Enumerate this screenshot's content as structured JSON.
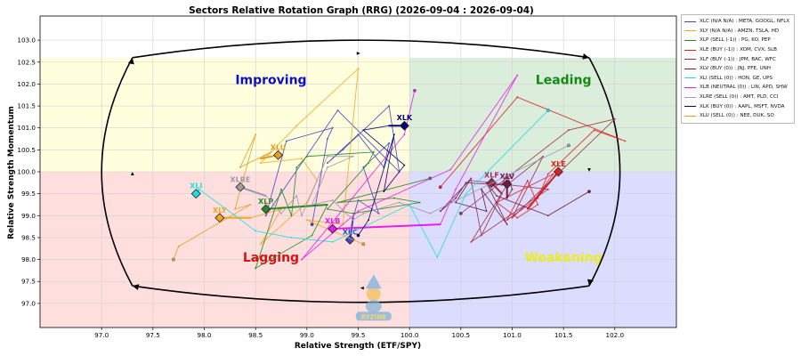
{
  "chart_data": {
    "type": "scatter",
    "title": "Sectors Relative Rotation Graph (RRG) (2026-09-04 : 2026-09-04)",
    "xlabel": "Relative Strength (ETF/SPY)",
    "ylabel": "Relative Strength Momentum",
    "xlim": [
      96.4,
      102.6
    ],
    "ylim": [
      96.45,
      103.55
    ],
    "xticks": [
      97.0,
      97.5,
      98.0,
      98.5,
      99.0,
      99.5,
      100.0,
      100.5,
      101.0,
      101.5,
      102.0
    ],
    "yticks": [
      97.0,
      97.5,
      98.0,
      98.5,
      99.0,
      99.5,
      100.0,
      100.5,
      101.0,
      101.5,
      102.0,
      102.5,
      103.0
    ],
    "grid": true,
    "legend_position": "right",
    "quadrants": [
      {
        "name": "Improving",
        "color": "#0d0dcc",
        "x": 98.65,
        "y": 102.1,
        "bg": "#ffffdd"
      },
      {
        "name": "Leading",
        "color": "#128a12",
        "x": 101.5,
        "y": 102.1,
        "bg": "#dbeedb"
      },
      {
        "name": "Lagging",
        "color": "#dd1111",
        "x": 98.65,
        "y": 98.05,
        "bg": "#ffdede"
      },
      {
        "name": "Weakening",
        "color": "#eded1b",
        "x": 101.5,
        "y": 98.05,
        "bg": "#dcdcff"
      }
    ],
    "watermark": "RYZINE",
    "series": [
      {
        "name": "XLC",
        "legend": "XLC (N/A N/A) : META, GOOGL, NFLX",
        "color": "#4444cc",
        "points": [
          [
            99.05,
            98.8
          ],
          [
            99.2,
            100.75
          ],
          [
            99.25,
            101.0
          ],
          [
            98.8,
            100.7
          ],
          [
            98.6,
            99.0
          ],
          [
            99.3,
            101.4
          ],
          [
            99.9,
            100.0
          ],
          [
            99.8,
            101.5
          ],
          [
            99.35,
            100.5
          ],
          [
            99.2,
            100.2
          ],
          [
            99.5,
            100.85
          ],
          [
            99.75,
            100.1
          ],
          [
            99.8,
            100.65
          ],
          [
            99.55,
            100.1
          ],
          [
            99.7,
            99.05
          ],
          [
            99.5,
            99.35
          ],
          [
            99.45,
            98.95
          ],
          [
            99.42,
            98.45
          ]
        ]
      },
      {
        "name": "XLY",
        "legend": "XLY (N/A N/A) : AMZN, TSLA, HD",
        "color": "#f5a623",
        "points": [
          [
            99.55,
            98.35
          ],
          [
            99.0,
            98.9
          ],
          [
            99.35,
            98.8
          ],
          [
            99.5,
            102.35
          ],
          [
            98.9,
            101.05
          ],
          [
            98.55,
            100.2
          ],
          [
            98.95,
            100.3
          ],
          [
            99.1,
            99.8
          ],
          [
            99.0,
            99.3
          ],
          [
            98.55,
            98.35
          ],
          [
            98.75,
            99.15
          ],
          [
            98.45,
            98.95
          ],
          [
            98.15,
            98.95
          ]
        ]
      },
      {
        "name": "XLP",
        "legend": "XLP (SELL (-1)) : PG, KO, PEP",
        "color": "#228b22",
        "points": [
          [
            100.2,
            99.85
          ],
          [
            99.3,
            99.3
          ],
          [
            99.85,
            99.4
          ],
          [
            100.1,
            99.3
          ],
          [
            99.45,
            99.05
          ],
          [
            99.2,
            99.15
          ],
          [
            99.6,
            100.2
          ],
          [
            99.65,
            100.45
          ],
          [
            99.0,
            100.35
          ],
          [
            98.9,
            100.1
          ],
          [
            98.85,
            99.0
          ],
          [
            98.75,
            99.6
          ],
          [
            98.5,
            97.8
          ],
          [
            99.05,
            98.55
          ],
          [
            99.2,
            99.25
          ],
          [
            98.6,
            99.15
          ]
        ]
      },
      {
        "name": "XLE",
        "legend": "XLE (BUY (-1)) : XOM, CVX, SLB",
        "color": "#e02020",
        "points": [
          [
            100.3,
            99.65
          ],
          [
            101.05,
            101.7
          ],
          [
            102.1,
            100.7
          ],
          [
            101.8,
            100.95
          ],
          [
            101.35,
            99.95
          ],
          [
            101.25,
            99.4
          ],
          [
            100.95,
            98.9
          ],
          [
            101.15,
            99.8
          ],
          [
            101.25,
            99.25
          ],
          [
            101.05,
            98.95
          ],
          [
            100.85,
            99.3
          ],
          [
            101.4,
            99.95
          ],
          [
            101.15,
            99.15
          ],
          [
            101.45,
            100.0
          ]
        ]
      },
      {
        "name": "XLF",
        "legend": "XLF (BUY (-1)) : JPM, BAC, WFC",
        "color": "#a0304a",
        "points": [
          [
            100.5,
            99.05
          ],
          [
            101.55,
            100.95
          ],
          [
            102.0,
            101.2
          ],
          [
            101.0,
            98.95
          ],
          [
            101.3,
            100.35
          ],
          [
            100.95,
            99.7
          ],
          [
            100.6,
            98.4
          ],
          [
            101.35,
            99.6
          ],
          [
            100.6,
            99.8
          ],
          [
            100.7,
            98.55
          ],
          [
            100.9,
            99.5
          ],
          [
            100.8,
            99.75
          ]
        ]
      },
      {
        "name": "XLV",
        "legend": "XLV (BUY (0)) : JNJ, PFE, UNH",
        "color": "#701a40",
        "points": [
          [
            101.75,
            99.55
          ],
          [
            101.35,
            99.0
          ],
          [
            100.85,
            99.45
          ],
          [
            100.75,
            99.75
          ],
          [
            100.95,
            98.8
          ],
          [
            100.7,
            99.6
          ],
          [
            100.75,
            99.1
          ],
          [
            100.45,
            99.3
          ],
          [
            100.6,
            99.85
          ],
          [
            100.3,
            99.1
          ],
          [
            100.45,
            99.4
          ],
          [
            100.55,
            99.75
          ],
          [
            100.9,
            99.7
          ],
          [
            100.95,
            99.95
          ],
          [
            101.0,
            99.6
          ],
          [
            100.95,
            99.4
          ],
          [
            100.95,
            99.72
          ]
        ]
      },
      {
        "name": "XLI",
        "legend": "XLI (SELL (0)) : HON, GE, UPS",
        "color": "#17e1e1",
        "points": [
          [
            101.35,
            101.4
          ],
          [
            100.55,
            99.5
          ],
          [
            100.27,
            98.05
          ],
          [
            100.0,
            99.25
          ],
          [
            99.25,
            98.4
          ],
          [
            98.85,
            98.5
          ],
          [
            98.5,
            98.65
          ],
          [
            98.3,
            99.0
          ],
          [
            97.95,
            99.6
          ],
          [
            97.92,
            99.5
          ]
        ]
      },
      {
        "name": "XLB",
        "legend": "XLB (NEUTRAL (0)) : LIN, APD, SHW",
        "color": "#e81ee8",
        "points": [
          [
            100.05,
            101.85
          ],
          [
            99.95,
            100.85
          ],
          [
            98.95,
            98.0
          ],
          [
            99.5,
            99.1
          ],
          [
            100.4,
            100.05
          ],
          [
            101.05,
            102.2
          ],
          [
            100.45,
            99.6
          ],
          [
            100.3,
            98.8
          ],
          [
            99.25,
            98.7
          ]
        ]
      },
      {
        "name": "XLRE",
        "legend": "XLRE (SELL (0)) : AMT, PLD, CCI",
        "color": "#9a9ab0",
        "points": [
          [
            101.55,
            100.6
          ],
          [
            100.2,
            99.05
          ],
          [
            99.9,
            99.3
          ],
          [
            99.55,
            99.05
          ],
          [
            99.45,
            98.9
          ],
          [
            99.25,
            99.35
          ],
          [
            99.05,
            99.25
          ],
          [
            99.2,
            100.1
          ],
          [
            99.45,
            100.35
          ],
          [
            99.2,
            100.35
          ],
          [
            98.95,
            99.0
          ],
          [
            98.9,
            99.45
          ],
          [
            98.75,
            99.05
          ],
          [
            98.6,
            99.45
          ],
          [
            98.35,
            99.65
          ]
        ]
      },
      {
        "name": "XLK",
        "legend": "XLK (BUY (0)) : AAPL, MSFT, NVDA",
        "color": "#00007a",
        "points": [
          [
            99.5,
            98.55
          ],
          [
            99.6,
            98.9
          ],
          [
            99.85,
            100.85
          ],
          [
            99.75,
            99.55
          ],
          [
            99.95,
            100.15
          ],
          [
            99.55,
            100.95
          ],
          [
            99.8,
            101.05
          ],
          [
            99.95,
            101.05
          ]
        ]
      },
      {
        "name": "XLU",
        "legend": "XLU (SELL (0)) : NEE, DUK, SO",
        "color": "#e3a020",
        "points": [
          [
            97.7,
            98.0
          ],
          [
            97.75,
            98.3
          ],
          [
            98.45,
            99.25
          ],
          [
            98.3,
            99.15
          ],
          [
            98.5,
            100.85
          ],
          [
            98.35,
            100.1
          ],
          [
            98.65,
            100.45
          ],
          [
            98.55,
            100.3
          ],
          [
            98.72,
            100.38
          ]
        ]
      }
    ]
  }
}
